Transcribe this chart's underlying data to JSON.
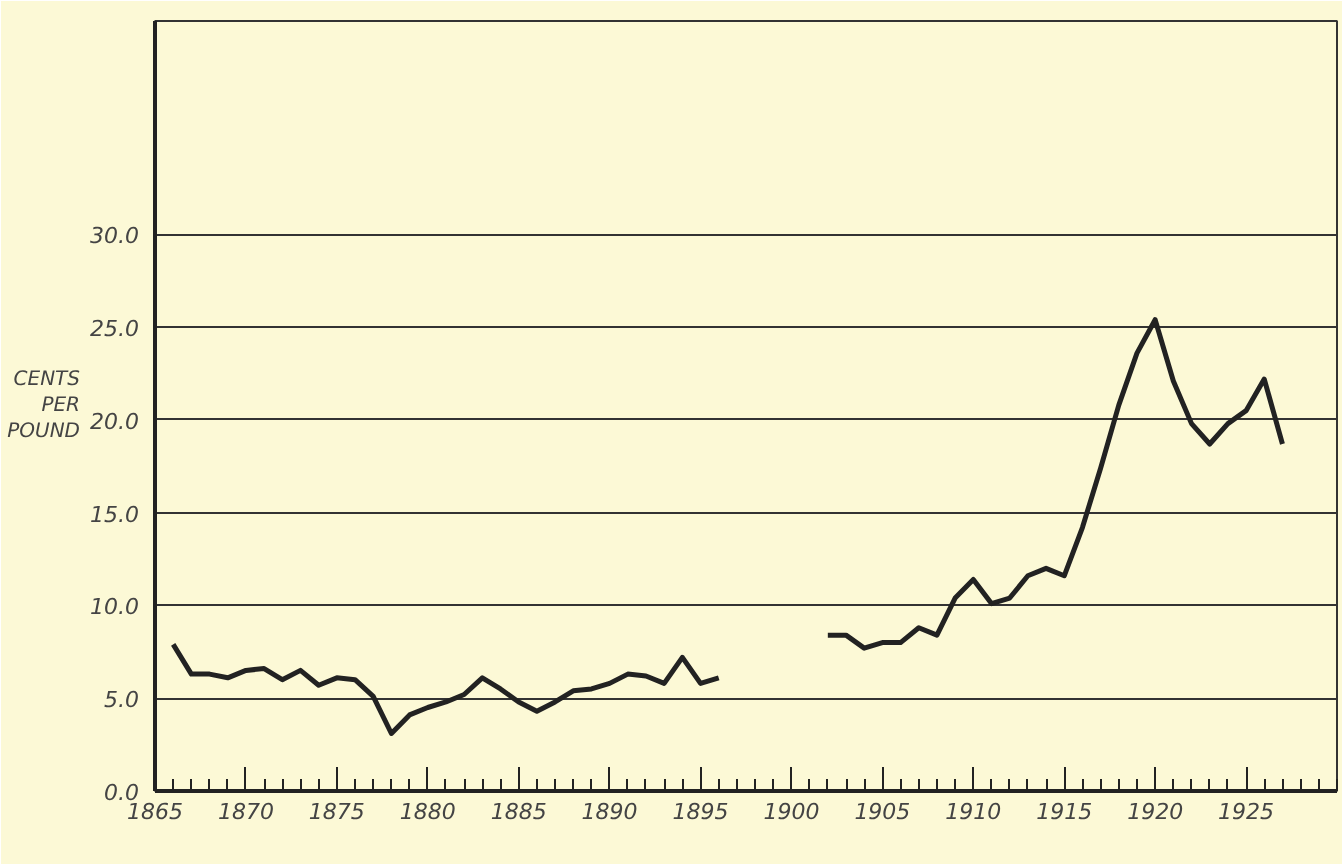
{
  "chart_data": {
    "type": "line",
    "ylabel": "CENTS PER POUND",
    "x": [
      1866,
      1867,
      1868,
      1869,
      1870,
      1871,
      1872,
      1873,
      1874,
      1875,
      1876,
      1877,
      1878,
      1879,
      1880,
      1881,
      1882,
      1883,
      1884,
      1885,
      1886,
      1887,
      1888,
      1889,
      1890,
      1891,
      1892,
      1893,
      1894,
      1895,
      1896,
      1897,
      1898,
      1899,
      1900,
      1901,
      1902,
      1903,
      1904,
      1905,
      1906,
      1907,
      1908,
      1909,
      1910,
      1911,
      1912,
      1913,
      1914,
      1915,
      1916,
      1917,
      1918,
      1919,
      1920,
      1921,
      1922,
      1923,
      1924,
      1925,
      1926,
      1927
    ],
    "series": [
      {
        "color": "#222222",
        "values": [
          7.9,
          6.3,
          6.3,
          6.1,
          6.5,
          6.6,
          6.0,
          6.5,
          5.7,
          6.1,
          6.0,
          5.1,
          3.1,
          4.1,
          4.5,
          4.8,
          5.2,
          6.1,
          5.5,
          4.8,
          4.3,
          4.8,
          5.4,
          5.5,
          5.8,
          6.3,
          6.2,
          5.8,
          7.2,
          5.8,
          6.1,
          null,
          null,
          null,
          null,
          null,
          8.4,
          8.4,
          7.7,
          8.0,
          8.0,
          8.8,
          8.4,
          10.4,
          11.4,
          10.1,
          10.4,
          11.6,
          12.0,
          11.6,
          14.2,
          17.4,
          20.8,
          23.6,
          25.4,
          22.1,
          19.8,
          18.7,
          19.8,
          20.5,
          22.2,
          18.7
        ]
      }
    ],
    "xlim": [
      1865,
      1930
    ],
    "ylim": [
      0,
      41.5
    ],
    "xticks": [
      1865,
      1870,
      1875,
      1880,
      1885,
      1890,
      1895,
      1900,
      1905,
      1910,
      1915,
      1920,
      1925
    ],
    "yticks": [
      {
        "value": 0,
        "label": "0.0"
      },
      {
        "value": 5,
        "label": "5.0"
      },
      {
        "value": 10,
        "label": "10.0"
      },
      {
        "value": 15,
        "label": "15.0"
      },
      {
        "value": 20,
        "label": "20.0"
      },
      {
        "value": 25,
        "label": "25.0"
      },
      {
        "value": 30,
        "label": "30.0"
      }
    ],
    "grid": "y",
    "marker": "none",
    "line_style": "solid"
  }
}
